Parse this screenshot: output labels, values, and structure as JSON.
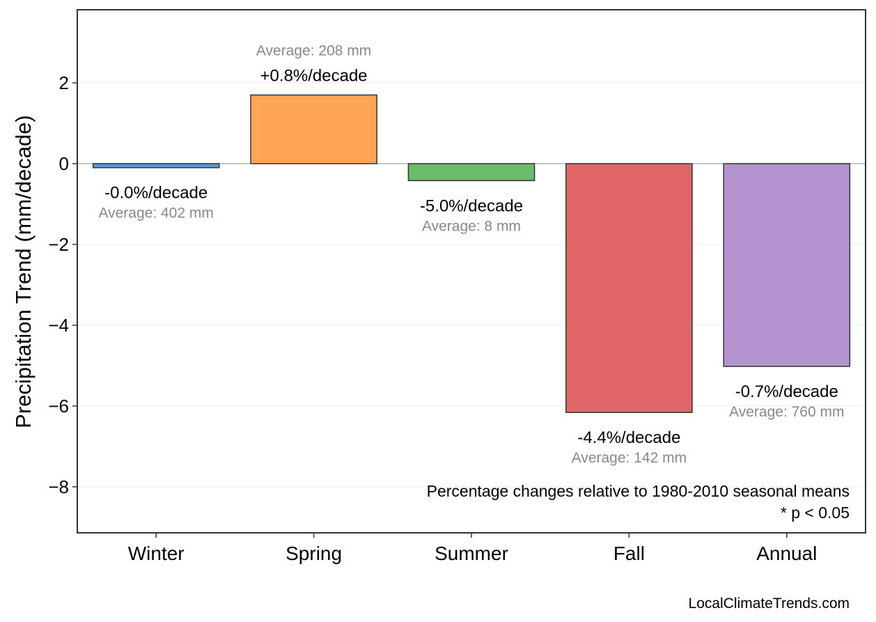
{
  "chart_data": {
    "type": "bar",
    "title": "",
    "xlabel": "",
    "ylabel": "Precipitation Trend (mm/decade)",
    "ylim": [
      -9.14,
      3.81
    ],
    "yticks": [
      2,
      0,
      -2,
      -4,
      -6,
      -8
    ],
    "ytick_labels": [
      "2",
      "0",
      "−2",
      "−4",
      "−6",
      "−8"
    ],
    "grid": true,
    "categories": [
      "Winter",
      "Spring",
      "Summer",
      "Fall",
      "Annual"
    ],
    "values": [
      -0.1,
      1.7,
      -0.42,
      -6.16,
      -5.02
    ],
    "colors": [
      "#5b9bd5",
      "#ffa555",
      "#69bd6a",
      "#e06668",
      "#b394d0"
    ],
    "trend_labels": [
      "-0.0%/decade",
      "+0.8%/decade",
      "-5.0%/decade",
      "-4.4%/decade",
      "-0.7%/decade"
    ],
    "average_labels": [
      "Average: 402 mm",
      "Average: 208 mm",
      "Average: 8 mm",
      "Average: 142 mm",
      "Average: 760 mm"
    ],
    "annotation_lines": [
      "Percentage changes relative to 1980-2010 seasonal means",
      "* p < 0.05"
    ],
    "footer": "LocalClimateTrends.com"
  }
}
